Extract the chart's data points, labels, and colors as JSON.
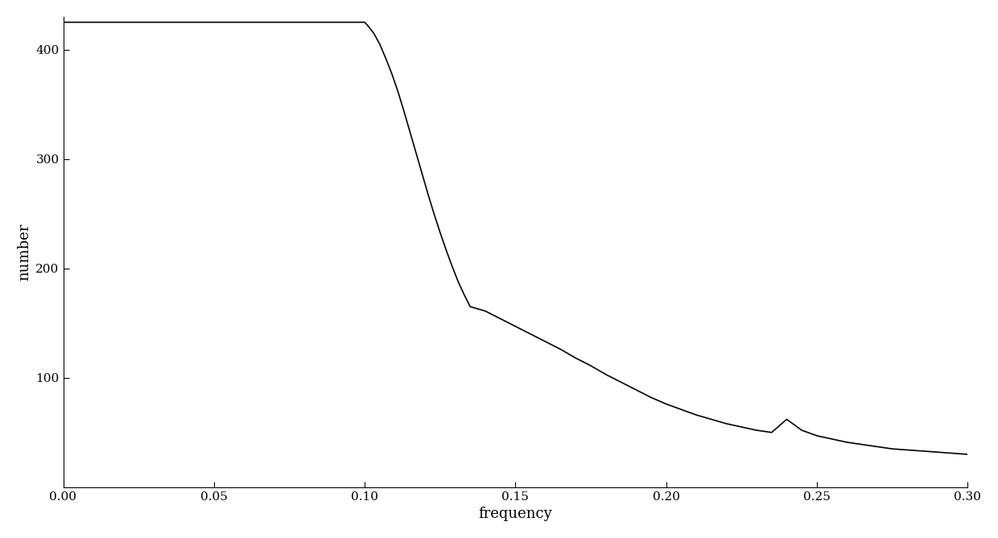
{
  "xlabel": "frequency",
  "ylabel": "number",
  "xlim": [
    0.0,
    0.3
  ],
  "ylim": [
    0,
    430
  ],
  "xticks": [
    0.0,
    0.05,
    0.1,
    0.15,
    0.2,
    0.25,
    0.3
  ],
  "yticks": [
    100,
    200,
    300,
    400
  ],
  "line_color": "#000000",
  "line_width": 1.2,
  "background_color": "#ffffff",
  "key_points": [
    [
      0.0,
      425
    ],
    [
      0.1,
      425
    ],
    [
      0.101,
      422
    ],
    [
      0.103,
      415
    ],
    [
      0.105,
      405
    ],
    [
      0.107,
      392
    ],
    [
      0.109,
      378
    ],
    [
      0.111,
      362
    ],
    [
      0.113,
      344
    ],
    [
      0.115,
      325
    ],
    [
      0.117,
      306
    ],
    [
      0.119,
      287
    ],
    [
      0.121,
      268
    ],
    [
      0.123,
      250
    ],
    [
      0.125,
      233
    ],
    [
      0.127,
      217
    ],
    [
      0.129,
      202
    ],
    [
      0.131,
      188
    ],
    [
      0.133,
      176
    ],
    [
      0.135,
      165
    ],
    [
      0.14,
      161
    ],
    [
      0.145,
      154
    ],
    [
      0.15,
      147
    ],
    [
      0.155,
      140
    ],
    [
      0.16,
      133
    ],
    [
      0.165,
      126
    ],
    [
      0.17,
      118
    ],
    [
      0.175,
      111
    ],
    [
      0.18,
      103
    ],
    [
      0.185,
      96
    ],
    [
      0.19,
      89
    ],
    [
      0.195,
      82
    ],
    [
      0.2,
      76
    ],
    [
      0.205,
      71
    ],
    [
      0.21,
      66
    ],
    [
      0.215,
      62
    ],
    [
      0.22,
      58
    ],
    [
      0.225,
      55
    ],
    [
      0.23,
      52
    ],
    [
      0.235,
      50
    ],
    [
      0.24,
      62
    ],
    [
      0.245,
      52
    ],
    [
      0.25,
      47
    ],
    [
      0.255,
      44
    ],
    [
      0.26,
      41
    ],
    [
      0.265,
      39
    ],
    [
      0.27,
      37
    ],
    [
      0.275,
      35
    ],
    [
      0.28,
      34
    ],
    [
      0.285,
      33
    ],
    [
      0.29,
      32
    ],
    [
      0.295,
      31
    ],
    [
      0.3,
      30
    ]
  ]
}
